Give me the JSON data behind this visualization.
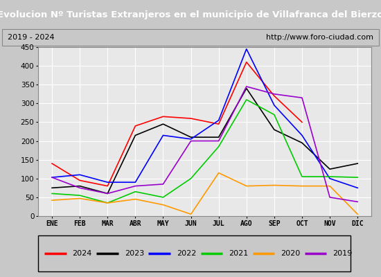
{
  "title": "Evolucion Nº Turistas Extranjeros en el municipio de Villafranca del Bierzo",
  "subtitle_left": "2019 - 2024",
  "subtitle_right": "http://www.foro-ciudad.com",
  "title_bg": "#4472c4",
  "title_color": "white",
  "xlabel_months": [
    "ENE",
    "FEB",
    "MAR",
    "ABR",
    "MAY",
    "JUN",
    "JUL",
    "AGO",
    "SEP",
    "OCT",
    "NOV",
    "DIC"
  ],
  "ylim": [
    0,
    450
  ],
  "yticks": [
    0,
    50,
    100,
    150,
    200,
    250,
    300,
    350,
    400,
    450
  ],
  "series": {
    "2024": {
      "color": "#ff0000",
      "data": [
        140,
        95,
        80,
        240,
        265,
        260,
        245,
        410,
        320,
        250,
        null,
        null
      ]
    },
    "2023": {
      "color": "#000000",
      "data": [
        75,
        80,
        60,
        215,
        245,
        210,
        210,
        340,
        230,
        195,
        125,
        140
      ]
    },
    "2022": {
      "color": "#0000ff",
      "data": [
        103,
        110,
        90,
        90,
        215,
        205,
        255,
        445,
        295,
        215,
        100,
        75
      ]
    },
    "2021": {
      "color": "#00cc00",
      "data": [
        60,
        55,
        35,
        65,
        50,
        100,
        185,
        310,
        270,
        105,
        105,
        103
      ]
    },
    "2020": {
      "color": "#ff9900",
      "data": [
        42,
        47,
        35,
        45,
        30,
        5,
        115,
        80,
        82,
        80,
        80,
        5
      ]
    },
    "2019": {
      "color": "#9900cc",
      "data": [
        103,
        75,
        60,
        80,
        85,
        200,
        200,
        345,
        325,
        315,
        50,
        38
      ]
    }
  },
  "legend_order": [
    "2024",
    "2023",
    "2022",
    "2021",
    "2020",
    "2019"
  ],
  "plot_bg": "#e8e8e8",
  "grid_color": "#ffffff",
  "outer_bg": "#d0d0d0"
}
